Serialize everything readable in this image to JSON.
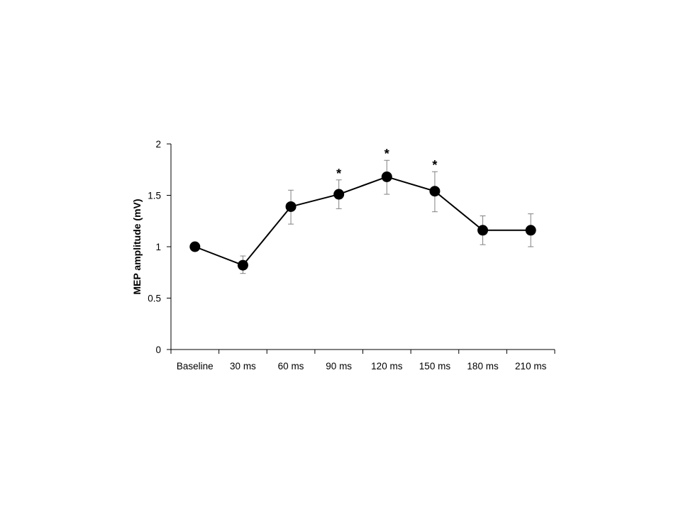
{
  "chart_data": {
    "type": "line",
    "title": "",
    "xlabel": "",
    "ylabel": "MEP amplitude (mV)",
    "ylim": [
      0,
      2
    ],
    "yticks": [
      "0",
      "0.5",
      "1",
      "1.5",
      "2"
    ],
    "ytick_values": [
      0,
      0.5,
      1,
      1.5,
      2
    ],
    "categories": [
      "Baseline",
      "30 ms",
      "60 ms",
      "90 ms",
      "120 ms",
      "150 ms",
      "180 ms",
      "210 ms"
    ],
    "series": [
      {
        "values": [
          1.0,
          0.82,
          1.39,
          1.51,
          1.68,
          1.54,
          1.16,
          1.16
        ],
        "error_upper": [
          null,
          0.91,
          1.55,
          1.65,
          1.84,
          1.73,
          1.3,
          1.32
        ],
        "error_lower": [
          null,
          0.74,
          1.22,
          1.37,
          1.51,
          1.34,
          1.02,
          1.0
        ]
      }
    ],
    "significance": [
      false,
      false,
      false,
      true,
      true,
      true,
      false,
      false
    ],
    "significance_symbol": "*",
    "grid": false,
    "legend": "none",
    "colors": {
      "line": "#000000",
      "marker": "#000000",
      "error_bar": "#808080",
      "axis": "#000000"
    }
  }
}
